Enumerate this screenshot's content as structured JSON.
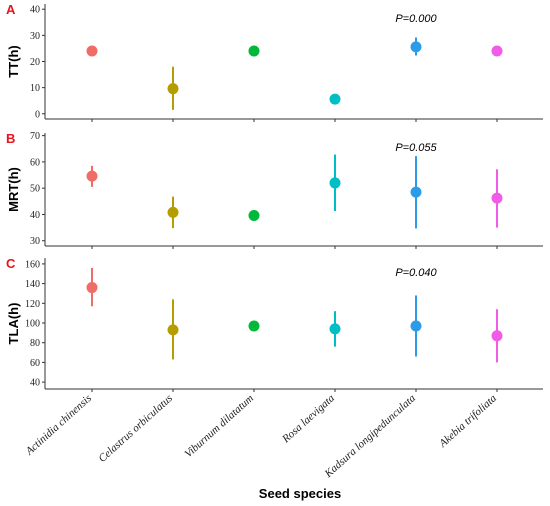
{
  "chart_data": {
    "type": "scatter",
    "xlabel": "Seed species",
    "categories": [
      "Actinidia chinensis",
      "Celastrus orbiculatus",
      "Viburnum dilatatum",
      "Rosa laevigata",
      "Kadsura longipedunculata",
      "Akebia trifoliata"
    ],
    "colors": [
      "#f06c66",
      "#b59c00",
      "#00b93a",
      "#00bfc4",
      "#2c9be8",
      "#f05ce8"
    ],
    "panels": [
      {
        "letter": "A",
        "ylabel": "TT(h)",
        "pvalue": "P=0.000",
        "ylim": [
          -2,
          42
        ],
        "yticks": [
          0,
          10,
          20,
          30,
          40
        ],
        "mean": [
          24,
          9.6,
          24,
          5.6,
          25.6,
          24
        ],
        "lower": [
          24,
          1.5,
          24,
          5.6,
          22.3,
          24
        ],
        "upper": [
          24,
          18,
          24,
          5.6,
          29.2,
          24
        ]
      },
      {
        "letter": "B",
        "ylabel": "MRT(h)",
        "pvalue": "P=0.055",
        "ylim": [
          28,
          71
        ],
        "yticks": [
          30,
          40,
          50,
          60,
          70
        ],
        "mean": [
          54.6,
          40.8,
          39.6,
          52,
          48.5,
          46.2
        ],
        "lower": [
          50.5,
          34.8,
          39.6,
          41.3,
          34.7,
          35
        ],
        "upper": [
          58.5,
          46.8,
          39.6,
          62.8,
          62.2,
          57.2
        ]
      },
      {
        "letter": "C",
        "ylabel": "TLA(h)",
        "pvalue": "P=0.040",
        "ylim": [
          33,
          166
        ],
        "yticks": [
          40,
          60,
          80,
          100,
          120,
          140,
          160
        ],
        "mean": [
          136,
          93,
          97,
          94,
          97,
          87
        ],
        "lower": [
          117,
          63,
          97,
          76,
          66,
          60
        ],
        "upper": [
          156,
          124,
          97,
          112,
          128,
          114
        ]
      }
    ]
  }
}
